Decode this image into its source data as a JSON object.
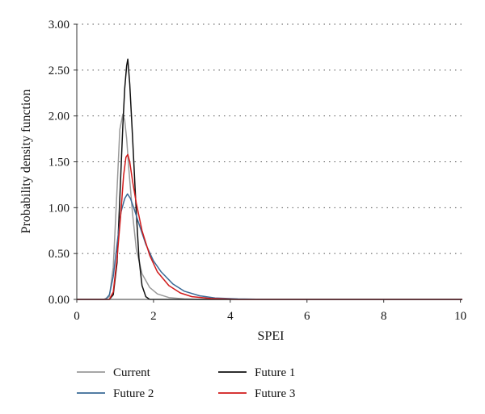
{
  "chart_data": {
    "type": "line",
    "xlabel": "SPEI",
    "ylabel": "Probability density function",
    "xlim": [
      0,
      10.05
    ],
    "ylim": [
      0,
      3.0
    ],
    "xticks": [
      "0",
      "2",
      "4",
      "6",
      "8",
      "10"
    ],
    "yticks": [
      "0.00",
      "0.50",
      "1.00",
      "1.50",
      "2.00",
      "2.50",
      "3.00"
    ],
    "grid": "horizontal dotted",
    "legend_position": "bottom",
    "series": [
      {
        "name": "Current",
        "color": "#999999",
        "x": [
          0,
          0.7,
          0.85,
          0.95,
          1.05,
          1.12,
          1.2,
          1.25,
          1.3,
          1.35,
          1.45,
          1.55,
          1.7,
          1.9,
          2.1,
          2.4,
          2.8,
          3.2,
          10.05
        ],
        "y": [
          0,
          0,
          0.03,
          0.35,
          1.2,
          1.85,
          2.02,
          1.95,
          1.75,
          1.45,
          0.95,
          0.55,
          0.28,
          0.13,
          0.06,
          0.02,
          0.005,
          0,
          0
        ]
      },
      {
        "name": "Future 1",
        "color": "#111111",
        "x": [
          0,
          0.85,
          0.95,
          1.05,
          1.12,
          1.2,
          1.25,
          1.3,
          1.33,
          1.38,
          1.45,
          1.55,
          1.62,
          1.7,
          1.8,
          1.9,
          10.05
        ],
        "y": [
          0,
          0,
          0.05,
          0.4,
          1.1,
          1.9,
          2.3,
          2.55,
          2.62,
          2.35,
          1.8,
          0.95,
          0.45,
          0.15,
          0.03,
          0,
          0
        ]
      },
      {
        "name": "Future 2",
        "color": "#3a6a96",
        "x": [
          0,
          0.75,
          0.85,
          0.95,
          1.05,
          1.15,
          1.25,
          1.32,
          1.4,
          1.5,
          1.6,
          1.8,
          2.0,
          2.2,
          2.5,
          2.8,
          3.2,
          3.6,
          4.2,
          5.0,
          10.05
        ],
        "y": [
          0,
          0,
          0.05,
          0.25,
          0.6,
          0.95,
          1.1,
          1.15,
          1.1,
          0.98,
          0.85,
          0.6,
          0.42,
          0.3,
          0.17,
          0.09,
          0.04,
          0.015,
          0.005,
          0,
          0
        ]
      },
      {
        "name": "Future 3",
        "color": "#d11a1a",
        "x": [
          0,
          0.85,
          0.95,
          1.05,
          1.15,
          1.22,
          1.28,
          1.33,
          1.38,
          1.45,
          1.55,
          1.7,
          1.9,
          2.1,
          2.4,
          2.7,
          3.0,
          3.5,
          4.2,
          10.05
        ],
        "y": [
          0,
          0,
          0.08,
          0.45,
          0.95,
          1.35,
          1.55,
          1.58,
          1.5,
          1.3,
          1.05,
          0.75,
          0.48,
          0.3,
          0.15,
          0.07,
          0.03,
          0.01,
          0,
          0
        ]
      }
    ]
  }
}
